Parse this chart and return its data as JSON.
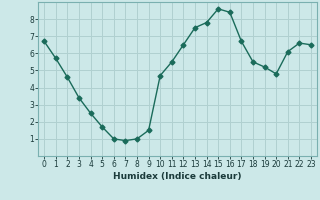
{
  "x": [
    0,
    1,
    2,
    3,
    4,
    5,
    6,
    7,
    8,
    9,
    10,
    11,
    12,
    13,
    14,
    15,
    16,
    17,
    18,
    19,
    20,
    21,
    22,
    23
  ],
  "y": [
    6.7,
    5.7,
    4.6,
    3.4,
    2.5,
    1.7,
    1.0,
    0.9,
    1.0,
    1.5,
    4.7,
    5.5,
    6.5,
    7.5,
    7.8,
    8.6,
    8.4,
    6.7,
    5.5,
    5.2,
    4.8,
    6.1,
    6.6,
    6.5
  ],
  "xlabel": "Humidex (Indice chaleur)",
  "line_color": "#1a6b5a",
  "bg_color": "#cce8e8",
  "grid_color": "#b0d0d0",
  "ylim": [
    0,
    9
  ],
  "xlim": [
    -0.5,
    23.5
  ],
  "yticks": [
    1,
    2,
    3,
    4,
    5,
    6,
    7,
    8
  ],
  "xticks": [
    0,
    1,
    2,
    3,
    4,
    5,
    6,
    7,
    8,
    9,
    10,
    11,
    12,
    13,
    14,
    15,
    16,
    17,
    18,
    19,
    20,
    21,
    22,
    23
  ],
  "marker": "D",
  "marker_size": 2.5,
  "line_width": 1.0,
  "tick_fontsize": 5.5,
  "xlabel_fontsize": 6.5
}
